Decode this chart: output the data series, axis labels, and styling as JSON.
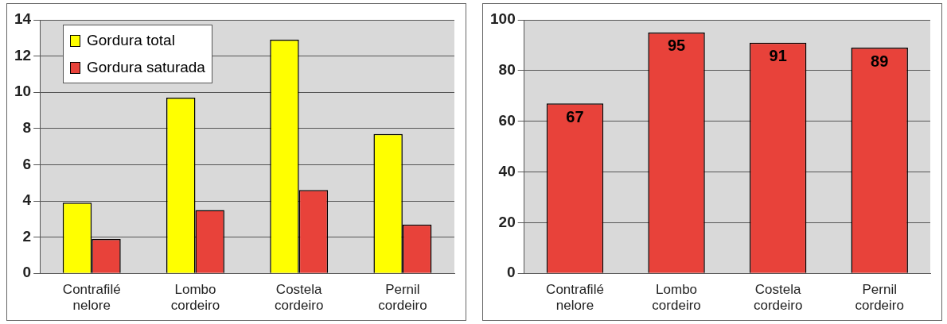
{
  "chart_data": [
    {
      "type": "bar",
      "categories": [
        "Contrafilé nelore",
        "Lombo cordeiro",
        "Costela cordeiro",
        "Pernil cordeiro"
      ],
      "series": [
        {
          "name": "Gordura total",
          "color": "#ffff00",
          "values": [
            3.9,
            9.7,
            12.9,
            7.7
          ]
        },
        {
          "name": "Gordura saturada",
          "color": "#e8423a",
          "values": [
            1.9,
            3.5,
            4.6,
            2.7
          ]
        }
      ],
      "ylim": [
        0,
        14
      ],
      "yticks": [
        0,
        2,
        4,
        6,
        8,
        10,
        12,
        14
      ],
      "grid": "y",
      "legend": "top left"
    },
    {
      "type": "bar",
      "categories": [
        "Contrafilé nelore",
        "Lombo cordeiro",
        "Costela cordeiro",
        "Pernil cordeiro"
      ],
      "series": [
        {
          "color": "#e8423a",
          "values": [
            67,
            95,
            91,
            89
          ]
        }
      ],
      "ylim": [
        0,
        100
      ],
      "yticks": [
        0,
        20,
        40,
        60,
        80,
        100
      ],
      "grid": "y",
      "data_labels": true
    }
  ]
}
